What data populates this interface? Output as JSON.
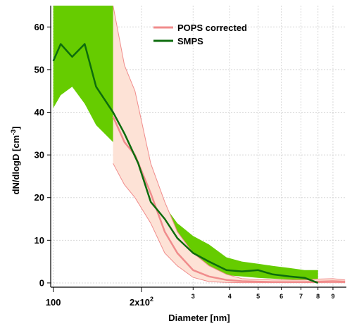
{
  "chart_data": {
    "type": "line",
    "xlabel": "Diameter [nm]",
    "ylabel": "dN/dlogD [cm",
    "ylabel_sup": "-3",
    "ylabel_close": "]",
    "x_scale": "log",
    "xlim": [
      98,
      1000
    ],
    "ylim": [
      -1,
      65
    ],
    "grid": true,
    "legend_position": "top-center",
    "x_major_ticks": [
      {
        "value": 100,
        "label": "100"
      },
      {
        "value": 200,
        "label": "2x10"
      }
    ],
    "x_major_tick_sup": "2",
    "x_minor_ticks": [
      {
        "value": 300,
        "label": "3"
      },
      {
        "value": 400,
        "label": "4"
      },
      {
        "value": 500,
        "label": "5"
      },
      {
        "value": 600,
        "label": "6"
      },
      {
        "value": 700,
        "label": "7"
      },
      {
        "value": 800,
        "label": "8"
      },
      {
        "value": 900,
        "label": "9"
      }
    ],
    "y_ticks": [
      0,
      10,
      20,
      30,
      40,
      50,
      60
    ],
    "series": [
      {
        "name": "POPS corrected",
        "color": "#f08c8c",
        "band_color": "#fde2d6",
        "x": [
          160,
          175,
          190,
          215,
          240,
          265,
          300,
          340,
          390,
          440,
          500,
          560,
          640,
          720,
          800,
          900,
          990
        ],
        "y": [
          39,
          33,
          30,
          21,
          12,
          7,
          3,
          1.5,
          0.7,
          0.4,
          0.3,
          0.2,
          0.2,
          0.2,
          0.3,
          0.4,
          0.3
        ],
        "upper": [
          65,
          51,
          45,
          28,
          19,
          12,
          7,
          4,
          2,
          1,
          0.8,
          0.7,
          0.7,
          0.7,
          0.9,
          1.0,
          0.7
        ],
        "lower": [
          28,
          23,
          20,
          14,
          7,
          4,
          1.3,
          0.3,
          0.1,
          0.05,
          0.05,
          0.05,
          0.05,
          0.05,
          0.05,
          0.05,
          0.05
        ]
      },
      {
        "name": "SMPS",
        "color": "#0d6c0d",
        "band_color": "#66cc00",
        "x": [
          100,
          106,
          116,
          128,
          140,
          160,
          175,
          195,
          215,
          240,
          265,
          300,
          340,
          390,
          440,
          500,
          560,
          640,
          720,
          800
        ],
        "y": [
          52,
          56,
          53,
          56,
          46,
          40,
          35,
          28,
          19,
          15,
          10.5,
          7,
          5,
          3,
          2.7,
          3,
          2,
          1.5,
          1.2,
          0
        ],
        "upper": [
          65,
          65,
          65,
          65,
          65,
          65,
          40,
          30,
          22,
          18,
          14,
          11,
          9,
          6,
          5,
          4.5,
          4,
          3.5,
          3,
          3
        ],
        "lower": [
          41,
          44,
          46,
          42,
          37,
          33,
          30,
          23,
          17,
          12,
          8,
          5,
          3,
          1.8,
          1.5,
          1.2,
          1.0,
          0.8,
          0.5,
          0.2
        ]
      }
    ]
  }
}
